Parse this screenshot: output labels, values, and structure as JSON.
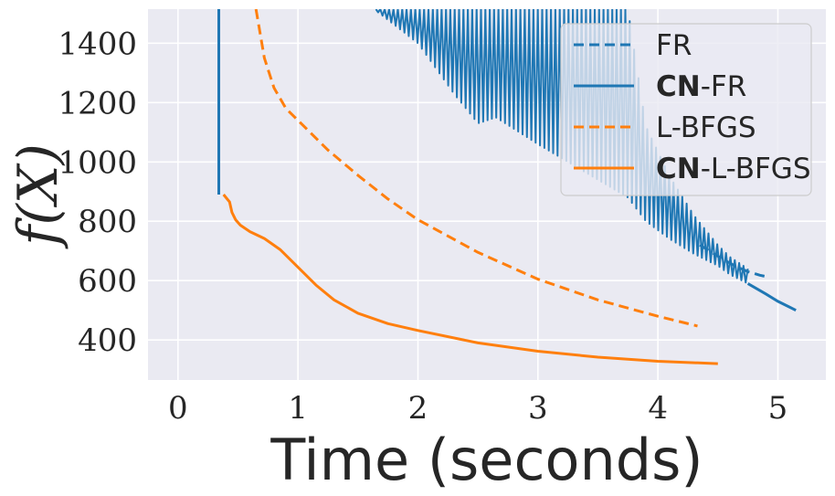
{
  "chart_data": {
    "type": "line",
    "xlabel": "Time (seconds)",
    "ylabel": "f(X)",
    "xlim": [
      -0.25,
      5.4
    ],
    "ylim": [
      265,
      1515
    ],
    "xticks": [
      0,
      1,
      2,
      3,
      4,
      5
    ],
    "yticks": [
      400,
      600,
      800,
      1000,
      1200,
      1400
    ],
    "grid": true,
    "legend_position": "top-right",
    "colors": {
      "blue": "#1f77b4",
      "orange": "#ff7f0e",
      "background": "#eaeaf2",
      "grid": "#ffffff"
    },
    "series": [
      {
        "name": "FR",
        "bold_prefix": "",
        "suffix": "FR",
        "color": "#1f77b4",
        "dash": "dashed",
        "x": [
          4.35,
          4.45,
          4.55,
          4.65,
          4.75,
          4.85,
          4.92
        ],
        "y": [
          720,
          695,
          670,
          648,
          630,
          618,
          612
        ]
      },
      {
        "name": "CN-FR",
        "bold_prefix": "CN",
        "suffix": "-FR",
        "color": "#1f77b4",
        "dash": "solid",
        "oscillating": true,
        "x": [
          0.34,
          0.34,
          0.34
        ],
        "y": [
          1515,
          890,
          890
        ],
        "envelope": {
          "x": [
            1.65,
            2.0,
            2.3,
            2.5,
            2.65,
            3.0,
            3.5,
            3.75,
            3.9,
            4.1,
            4.3,
            4.5,
            4.6,
            4.75
          ],
          "upper": [
            1515,
            1515,
            1515,
            1515,
            1515,
            1515,
            1515,
            1515,
            1120,
            950,
            820,
            720,
            680,
            640
          ],
          "lower": [
            1510,
            1400,
            1230,
            1130,
            1150,
            1060,
            940,
            880,
            800,
            740,
            690,
            650,
            620,
            590
          ]
        },
        "tail": {
          "x": [
            4.75,
            4.9,
            5.0,
            5.1,
            5.15
          ],
          "y": [
            590,
            555,
            530,
            510,
            500
          ]
        }
      },
      {
        "name": "L-BFGS",
        "bold_prefix": "",
        "suffix": "L-BFGS",
        "color": "#ff7f0e",
        "dash": "dashed",
        "x": [
          0.65,
          0.72,
          0.8,
          0.9,
          1.0,
          1.25,
          1.5,
          1.75,
          2.0,
          2.5,
          3.0,
          3.5,
          4.0,
          4.33
        ],
        "y": [
          1515,
          1350,
          1250,
          1180,
          1140,
          1040,
          955,
          875,
          805,
          695,
          605,
          535,
          480,
          447
        ]
      },
      {
        "name": "CN-L-BFGS",
        "bold_prefix": "CN",
        "suffix": "-L-BFGS",
        "color": "#ff7f0e",
        "dash": "solid",
        "x": [
          0.38,
          0.43,
          0.45,
          0.48,
          0.52,
          0.6,
          0.72,
          0.85,
          1.0,
          1.15,
          1.3,
          1.5,
          1.75,
          2.0,
          2.5,
          3.0,
          3.5,
          4.0,
          4.5
        ],
        "y": [
          890,
          865,
          830,
          805,
          787,
          765,
          742,
          705,
          645,
          585,
          535,
          490,
          455,
          432,
          390,
          362,
          342,
          328,
          320
        ]
      }
    ]
  }
}
